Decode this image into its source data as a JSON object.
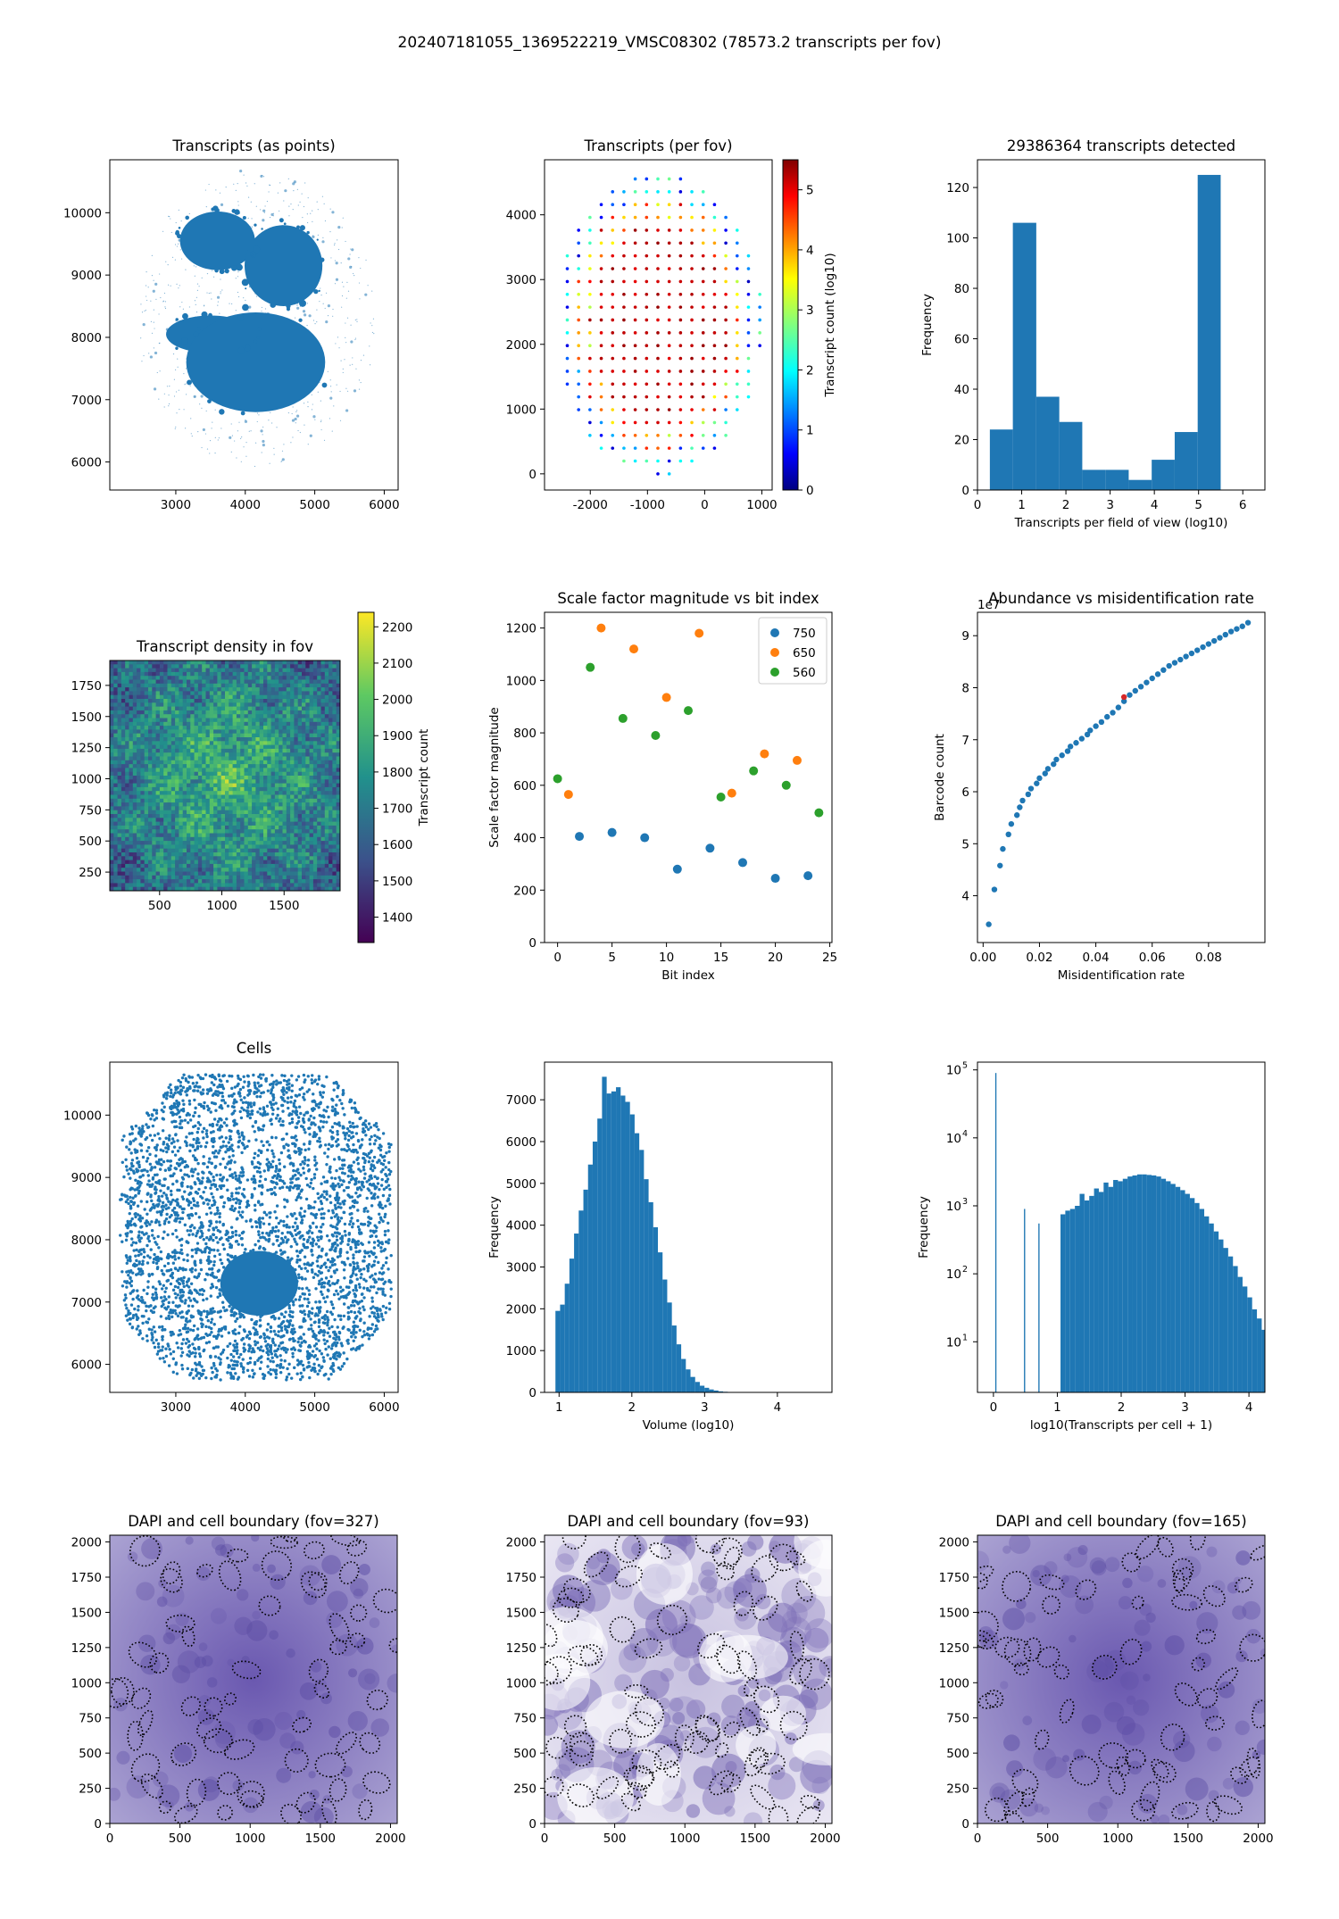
{
  "figure": {
    "suptitle": "202407181055_1369522219_VMSC08302 (78573.2 transcripts per fov)"
  },
  "chart_data": [
    {
      "id": "transcripts-points",
      "type": "scatter",
      "title": "Transcripts (as points)",
      "xlabel": "",
      "ylabel": "",
      "xlim": [
        2050,
        6200
      ],
      "ylim": [
        5550,
        10850
      ],
      "xticks": [
        3000,
        4000,
        5000,
        6000
      ],
      "yticks": [
        6000,
        7000,
        8000,
        9000,
        10000
      ],
      "color": "#1f77b4",
      "blobs": [
        {
          "cx": 3600,
          "cy": 9550,
          "rx": 540,
          "ry": 470
        },
        {
          "cx": 4550,
          "cy": 9150,
          "rx": 560,
          "ry": 650
        },
        {
          "cx": 3500,
          "cy": 8050,
          "rx": 640,
          "ry": 300
        },
        {
          "cx": 4150,
          "cy": 7600,
          "rx": 1000,
          "ry": 800
        }
      ]
    },
    {
      "id": "transcripts-per-fov",
      "type": "scatter",
      "title": "Transcripts (per fov)",
      "xlabel": "",
      "ylabel": "",
      "xlim": [
        -2800,
        1180
      ],
      "ylim": [
        -250,
        4850
      ],
      "xticks": [
        -2000,
        -1000,
        0,
        1000
      ],
      "yticks": [
        0,
        1000,
        2000,
        3000,
        4000
      ],
      "grid_spacing": 198,
      "grid_origin": [
        -2600,
        0
      ],
      "grid_extent": [
        [
          -2600,
          1000
        ],
        [
          0,
          4650
        ]
      ],
      "colorbar": {
        "label": "Transcript count (log10)",
        "min": 0,
        "max": 5.5,
        "ticks": [
          0,
          1,
          2,
          3,
          4,
          5
        ],
        "colormap": "jet"
      }
    },
    {
      "id": "fov-histogram",
      "type": "bar",
      "title": "29386364 transcripts detected",
      "xlabel": "Transcripts per field of view (log10)",
      "ylabel": "Frequency",
      "xlim": [
        0,
        6.5
      ],
      "ylim": [
        0,
        131
      ],
      "xticks": [
        0,
        1,
        2,
        3,
        4,
        5,
        6
      ],
      "yticks": [
        0,
        20,
        40,
        60,
        80,
        100,
        120
      ],
      "bin_edges": [
        0.28,
        0.8,
        1.33,
        1.85,
        2.37,
        2.9,
        3.42,
        3.94,
        4.46,
        4.98,
        5.5
      ],
      "values": [
        24,
        106,
        37,
        27,
        8,
        8,
        4,
        12,
        23,
        125
      ],
      "color": "#1f77b4"
    },
    {
      "id": "density-heatmap",
      "type": "heatmap",
      "title": "Transcript density in fov",
      "xlabel": "",
      "ylabel": "",
      "xlim": [
        100,
        1950
      ],
      "ylim": [
        100,
        1950
      ],
      "xticks": [
        500,
        1000,
        1500
      ],
      "yticks": [
        250,
        500,
        750,
        1000,
        1250,
        1500,
        1750
      ],
      "colorbar": {
        "label": "Transcript count",
        "min": 1330,
        "max": 2240,
        "ticks": [
          1400,
          1500,
          1600,
          1700,
          1800,
          1900,
          2000,
          2100,
          2200
        ],
        "colormap": "viridis"
      }
    },
    {
      "id": "scale-factor",
      "type": "scatter",
      "title": "Scale factor magnitude vs bit index",
      "xlabel": "Bit index",
      "ylabel": "Scale factor magnitude",
      "xlim": [
        -1.2,
        25.2
      ],
      "ylim": [
        0,
        1260
      ],
      "xticks": [
        0,
        5,
        10,
        15,
        20,
        25
      ],
      "yticks": [
        0,
        200,
        400,
        600,
        800,
        1000,
        1200
      ],
      "legend_position": "top-right",
      "series": [
        {
          "name": "750",
          "color": "#1f77b4",
          "x": [
            2,
            5,
            8,
            11,
            14,
            17,
            20,
            23
          ],
          "y": [
            405,
            420,
            400,
            280,
            360,
            305,
            245,
            255
          ]
        },
        {
          "name": "650",
          "color": "#ff7f0e",
          "x": [
            1,
            4,
            7,
            10,
            13,
            16,
            19,
            22
          ],
          "y": [
            565,
            1200,
            1120,
            935,
            1180,
            570,
            720,
            695
          ]
        },
        {
          "name": "560",
          "color": "#2ca02c",
          "x": [
            0,
            3,
            6,
            9,
            12,
            15,
            18,
            21,
            24
          ],
          "y": [
            625,
            1050,
            855,
            790,
            885,
            555,
            655,
            600,
            495
          ]
        }
      ]
    },
    {
      "id": "abundance",
      "type": "scatter",
      "title": "Abundance vs misidentification rate",
      "xlabel": "Misidentification rate",
      "ylabel": "Barcode count",
      "offset_label": "1e7",
      "xlim": [
        -0.002,
        0.1
      ],
      "ylim": [
        3.1,
        9.45
      ],
      "xticks": [
        0.0,
        0.02,
        0.04,
        0.06,
        0.08
      ],
      "yticks": [
        4,
        5,
        6,
        7,
        8,
        9
      ],
      "color": "#1f77b4",
      "highlight": {
        "x": 0.05,
        "y": 7.82,
        "color": "#d62728"
      },
      "x": [
        0.002,
        0.004,
        0.006,
        0.007,
        0.009,
        0.01,
        0.012,
        0.013,
        0.014,
        0.016,
        0.017,
        0.019,
        0.02,
        0.022,
        0.023,
        0.025,
        0.026,
        0.028,
        0.03,
        0.031,
        0.033,
        0.035,
        0.037,
        0.038,
        0.04,
        0.042,
        0.044,
        0.046,
        0.048,
        0.05,
        0.052,
        0.054,
        0.056,
        0.058,
        0.06,
        0.062,
        0.064,
        0.066,
        0.068,
        0.07,
        0.072,
        0.074,
        0.076,
        0.078,
        0.08,
        0.082,
        0.084,
        0.086,
        0.088,
        0.09,
        0.092,
        0.094
      ],
      "y": [
        3.45,
        4.12,
        4.58,
        4.9,
        5.18,
        5.38,
        5.55,
        5.7,
        5.83,
        5.95,
        6.06,
        6.16,
        6.26,
        6.35,
        6.44,
        6.53,
        6.62,
        6.7,
        6.78,
        6.87,
        6.94,
        7.02,
        7.1,
        7.18,
        7.26,
        7.34,
        7.44,
        7.52,
        7.62,
        7.74,
        7.86,
        7.94,
        8.02,
        8.1,
        8.18,
        8.26,
        8.34,
        8.42,
        8.48,
        8.54,
        8.6,
        8.66,
        8.72,
        8.78,
        8.84,
        8.9,
        8.96,
        9.02,
        9.08,
        9.13,
        9.18,
        9.25
      ]
    },
    {
      "id": "cells",
      "type": "scatter",
      "title": "Cells",
      "xlabel": "",
      "ylabel": "",
      "xlim": [
        2050,
        6200
      ],
      "ylim": [
        5550,
        10850
      ],
      "xticks": [
        3000,
        4000,
        5000,
        6000
      ],
      "yticks": [
        6000,
        7000,
        8000,
        9000,
        10000
      ],
      "color": "#1f77b4"
    },
    {
      "id": "volume-histogram",
      "type": "bar",
      "title": "",
      "xlabel": "Volume (log10)",
      "ylabel": "Frequency",
      "xlim": [
        0.8,
        4.75
      ],
      "ylim": [
        0,
        7900
      ],
      "xticks": [
        1,
        2,
        3,
        4
      ],
      "yticks": [
        0,
        1000,
        2000,
        3000,
        4000,
        5000,
        6000,
        7000
      ],
      "bin_start": 0.95,
      "bin_width": 0.064,
      "values": [
        1950,
        2100,
        2600,
        3200,
        3800,
        4350,
        4850,
        5450,
        6000,
        6550,
        7550,
        7150,
        7200,
        7300,
        7100,
        6950,
        6650,
        6200,
        5800,
        5100,
        4550,
        3950,
        3350,
        2700,
        2150,
        1600,
        1150,
        800,
        550,
        370,
        250,
        160,
        110,
        70,
        45,
        25,
        15,
        8,
        4,
        2
      ],
      "color": "#1f77b4"
    },
    {
      "id": "transcripts-per-cell",
      "type": "bar",
      "title": "",
      "xlabel": "log10(Transcripts per cell + 1)",
      "ylabel": "Frequency",
      "y_scale": "log",
      "xlim": [
        -0.25,
        4.25
      ],
      "ylim": [
        1.8,
        130000
      ],
      "xticks": [
        0,
        1,
        2,
        3,
        4
      ],
      "yticks": [
        10,
        100,
        1000,
        10000,
        100000
      ],
      "ytick_labels": [
        [
          "10",
          "1"
        ],
        [
          "10",
          "2"
        ],
        [
          "10",
          "3"
        ],
        [
          "10",
          "4"
        ],
        [
          "10",
          "5"
        ]
      ],
      "bin_start": 0,
      "bin_width": 0.075,
      "values": [
        90000,
        0,
        0,
        0,
        0,
        0,
        900,
        0,
        0,
        550,
        0,
        0,
        0,
        0,
        750,
        850,
        900,
        1000,
        1500,
        1200,
        1400,
        1800,
        1600,
        2200,
        1900,
        2400,
        2300,
        2500,
        2700,
        2800,
        2900,
        2900,
        2850,
        2800,
        2700,
        2500,
        2300,
        2100,
        1900,
        1700,
        1500,
        1300,
        1100,
        900,
        700,
        550,
        420,
        320,
        240,
        180,
        130,
        90,
        65,
        45,
        30,
        22,
        15,
        10,
        7,
        5,
        4,
        3
      ],
      "color": "#1f77b4"
    },
    {
      "id": "dapi-327",
      "type": "heatmap",
      "title": "DAPI and cell boundary (fov=327)",
      "xlabel": "",
      "ylabel": "",
      "xlim": [
        0,
        2048
      ],
      "ylim": [
        0,
        2048
      ],
      "xticks": [
        0,
        500,
        1000,
        1500,
        2000
      ],
      "yticks": [
        0,
        250,
        500,
        750,
        1000,
        1250,
        1500,
        1750,
        2000
      ],
      "style": "dark"
    },
    {
      "id": "dapi-93",
      "type": "heatmap",
      "title": "DAPI and cell boundary (fov=93)",
      "xlabel": "",
      "ylabel": "",
      "xlim": [
        0,
        2048
      ],
      "ylim": [
        0,
        2048
      ],
      "xticks": [
        0,
        500,
        1000,
        1500,
        2000
      ],
      "yticks": [
        0,
        250,
        500,
        750,
        1000,
        1250,
        1500,
        1750,
        2000
      ],
      "style": "light"
    },
    {
      "id": "dapi-165",
      "type": "heatmap",
      "title": "DAPI and cell boundary (fov=165)",
      "xlabel": "",
      "ylabel": "",
      "xlim": [
        0,
        2048
      ],
      "ylim": [
        0,
        2048
      ],
      "xticks": [
        0,
        500,
        1000,
        1500,
        2000
      ],
      "yticks": [
        0,
        250,
        500,
        750,
        1000,
        1250,
        1500,
        1750,
        2000
      ],
      "style": "dark"
    }
  ]
}
